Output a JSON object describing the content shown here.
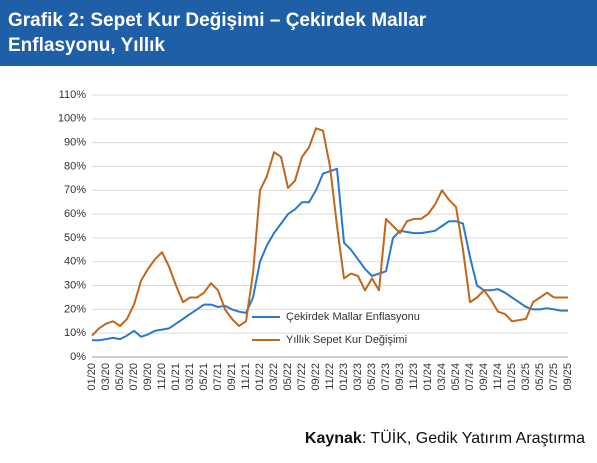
{
  "chart_data": {
    "type": "line",
    "title": "Grafik 2: Sepet Kur Değişimi – Çekirdek Mallar Enflasyonu, Yıllık",
    "source": {
      "label": "Kaynak",
      "text": ": TÜİK, Gedik Yatırım Araştırma"
    },
    "categories": [
      "01/20",
      null,
      "03/20",
      null,
      "05/20",
      null,
      "07/20",
      null,
      "09/20",
      null,
      "11/20",
      null,
      "01/21",
      null,
      "03/21",
      null,
      "05/21",
      null,
      "07/21",
      null,
      "09/21",
      null,
      "11/21",
      null,
      "01/22",
      null,
      "03/22",
      null,
      "05/22",
      null,
      "07/22",
      null,
      "09/22",
      null,
      "11/22",
      null,
      "01/23",
      null,
      "03/23",
      null,
      "05/23",
      null,
      "07/23",
      null,
      "09/23",
      null,
      "11/23",
      null,
      "01/24",
      null,
      "03/24",
      null,
      "05/24",
      null,
      "07/24",
      null,
      "09/24",
      null,
      "11/24",
      null,
      "01/25",
      null,
      "03/25",
      null,
      "05/25",
      null,
      "07/25",
      null,
      "09/25"
    ],
    "series": [
      {
        "name": "Çekirdek Mallar Enflasyonu",
        "color": "#2a78d0",
        "values": [
          7,
          7,
          7.5,
          8,
          7.5,
          9,
          11,
          8.5,
          9.5,
          11,
          11.5,
          12,
          14,
          16,
          18,
          20,
          22,
          22,
          21,
          21.5,
          20,
          19,
          18.5,
          25,
          40,
          47,
          52,
          56,
          60,
          62,
          65,
          65,
          70,
          77,
          78,
          79,
          48,
          45,
          41,
          37,
          34,
          35,
          36,
          50,
          53,
          52.5,
          52,
          52,
          52.5,
          53,
          55,
          57,
          57,
          56,
          42,
          30,
          28,
          28,
          28.5,
          27,
          25,
          23,
          21,
          20,
          20,
          20.5,
          20,
          19.5,
          19.5
        ]
      },
      {
        "name": "Yıllık Sepet Kur Değişimi",
        "color": "#c0671b",
        "values": [
          9,
          12,
          14,
          15,
          13,
          16,
          22,
          32,
          37,
          41,
          44,
          38,
          30,
          23,
          25,
          25,
          27,
          31,
          28,
          20,
          16,
          13,
          15,
          35,
          70,
          76,
          86,
          84,
          71,
          74,
          84,
          88,
          96,
          95,
          80,
          55,
          33,
          35,
          34,
          28,
          33,
          28,
          58,
          55,
          52,
          57,
          58,
          58,
          60,
          64,
          70,
          66,
          63,
          45,
          23,
          25,
          28,
          24,
          19,
          18,
          15,
          15.5,
          16,
          23,
          25,
          27,
          25,
          25,
          25
        ]
      }
    ],
    "ylim": [
      0,
      110
    ],
    "yticks": [
      {
        "value": 0,
        "label": "0%"
      },
      {
        "value": 10,
        "label": "10%"
      },
      {
        "value": 20,
        "label": "20%"
      },
      {
        "value": 30,
        "label": "30%"
      },
      {
        "value": 40,
        "label": "40%"
      },
      {
        "value": 50,
        "label": "50%"
      },
      {
        "value": 60,
        "label": "60%"
      },
      {
        "value": 70,
        "label": "70%"
      },
      {
        "value": 80,
        "label": "80%"
      },
      {
        "value": 90,
        "label": "90%"
      },
      {
        "value": 100,
        "label": "100%"
      },
      {
        "value": 110,
        "label": "110%"
      }
    ],
    "grid": true
  }
}
